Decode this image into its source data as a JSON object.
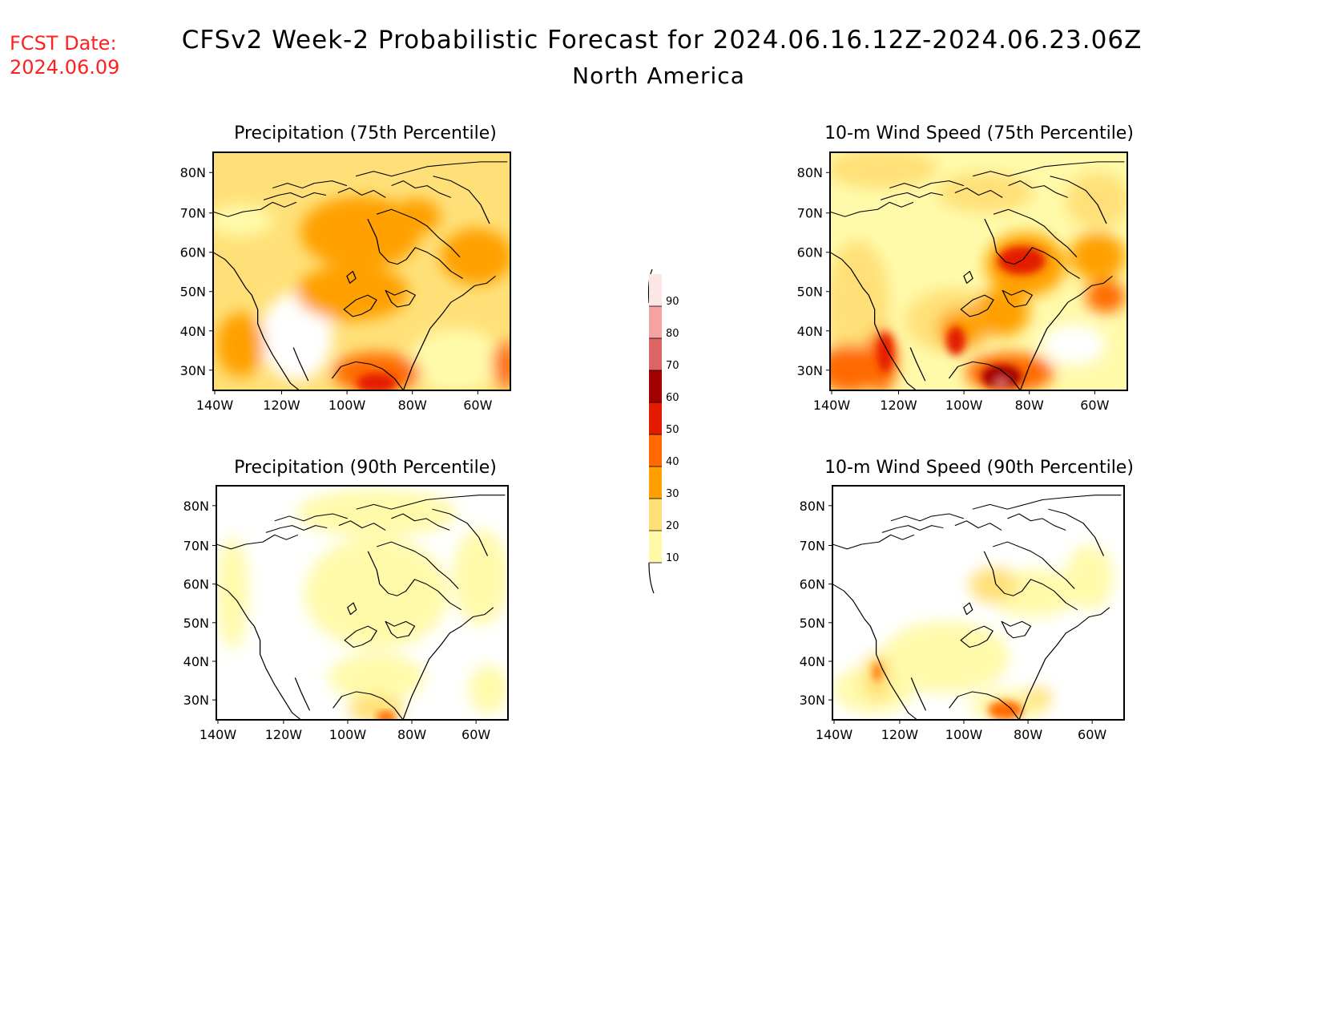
{
  "header": {
    "fcst_label": "FCST Date:",
    "fcst_date": "2024.06.09",
    "title": "CFSv2 Week-2 Probabilistic Forecast for 2024.06.16.12Z-2024.06.23.06Z",
    "subtitle": "North America",
    "fcst_color": "#ff2020"
  },
  "panels": [
    {
      "title": "Precipitation (75th Percentile)"
    },
    {
      "title": "10-m Wind Speed (75th Percentile)"
    },
    {
      "title": "Precipitation (90th Percentile)"
    },
    {
      "title": "10-m Wind Speed (90th Percentile)"
    }
  ],
  "axes": {
    "lat_labels": [
      "80N",
      "70N",
      "60N",
      "50N",
      "40N",
      "30N"
    ],
    "lon_labels": [
      "140W",
      "120W",
      "100W",
      "80W",
      "60W"
    ]
  },
  "colorbar": {
    "levels": [
      "10",
      "20",
      "30",
      "40",
      "50",
      "60",
      "70",
      "80",
      "90"
    ],
    "colors": [
      "#fffaaa",
      "#ffe078",
      "#ffa000",
      "#ff6a00",
      "#e41a00",
      "#a50000",
      "#dc6464",
      "#f4a2a2",
      "#fde6e6"
    ]
  }
}
